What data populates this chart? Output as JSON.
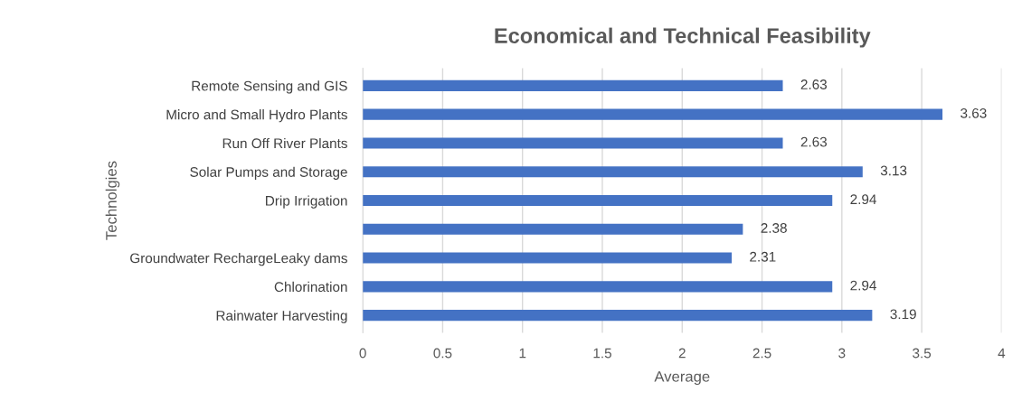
{
  "chart_data": {
    "type": "bar",
    "orientation": "horizontal",
    "title": "Economical and Technical Feasibility",
    "xlabel": "Average",
    "ylabel": "Technolgies",
    "categories": [
      "Remote Sensing and GIS",
      "Micro and Small Hydro Plants",
      "Run Off River Plants",
      "Solar Pumps and Storage",
      "Drip Irrigation",
      null,
      "Groundwater RechargeLeaky dams",
      "Chlorination",
      "Rainwater Harvesting"
    ],
    "values": [
      2.63,
      3.63,
      2.63,
      3.13,
      2.94,
      2.38,
      2.31,
      2.94,
      3.19
    ],
    "color": "#4472c4",
    "xlim": [
      0,
      4
    ],
    "xticks": [
      0,
      0.5,
      1,
      1.5,
      2,
      2.5,
      3,
      3.5,
      4
    ],
    "grid": "x",
    "data_labels": true
  }
}
